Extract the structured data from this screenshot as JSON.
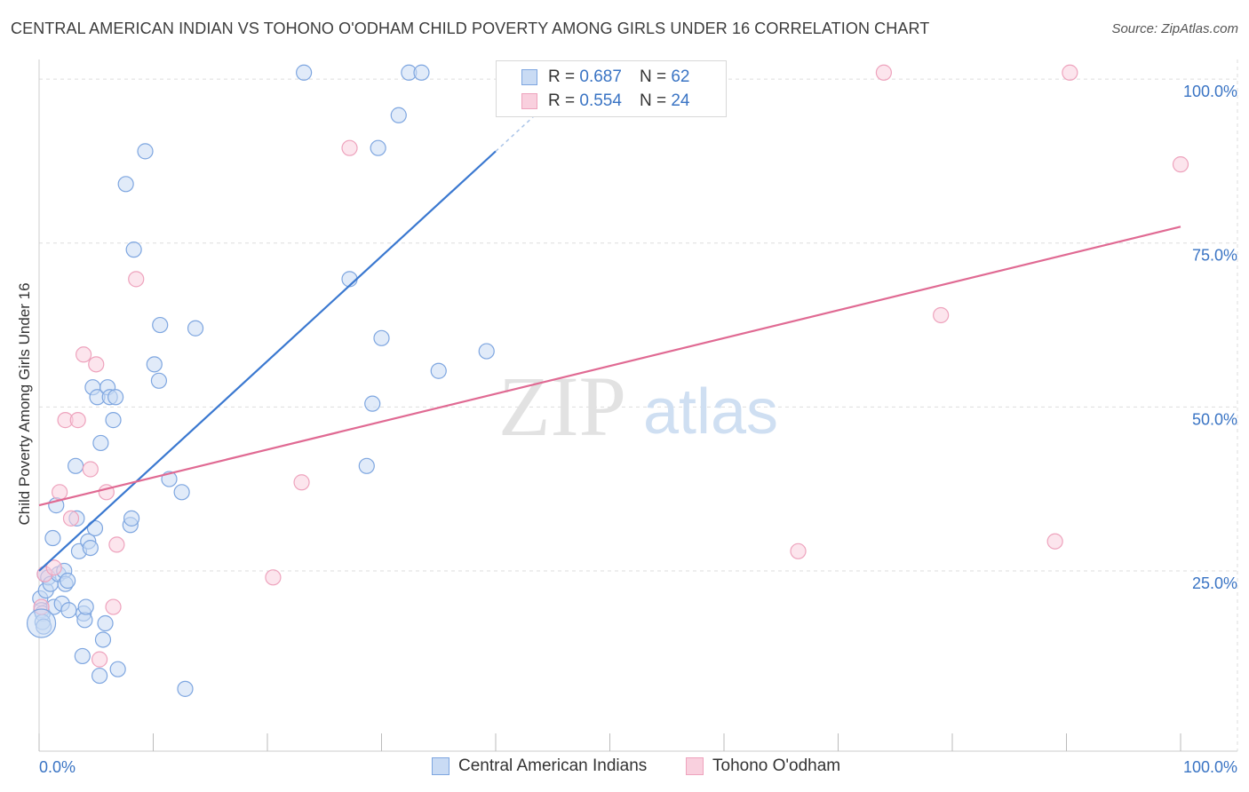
{
  "title": "CENTRAL AMERICAN INDIAN VS TOHONO O'ODHAM CHILD POVERTY AMONG GIRLS UNDER 16 CORRELATION CHART",
  "source": "Source: ZipAtlas.com",
  "watermark": {
    "zip": "ZIP",
    "atlas": "atlas"
  },
  "legend": {
    "r_label": "R =",
    "n_label": "N =",
    "rows": [
      {
        "r": "0.687",
        "n": "62"
      },
      {
        "r": "0.554",
        "n": "24"
      }
    ]
  },
  "chart_data": {
    "type": "scatter",
    "title": "CENTRAL AMERICAN INDIAN VS TOHONO O'ODHAM CHILD POVERTY AMONG GIRLS UNDER 16 CORRELATION CHART",
    "xlabel": "",
    "ylabel": "Child Poverty Among Girls Under 16",
    "xlim": [
      0,
      100
    ],
    "ylim": [
      -2.5,
      103
    ],
    "x_tick_labels": [
      {
        "value": 0,
        "label": "0.0%"
      },
      {
        "value": 100,
        "label": "100.0%"
      }
    ],
    "y_tick_labels": [
      {
        "value": 25,
        "label": "25.0%"
      },
      {
        "value": 50,
        "label": "50.0%"
      },
      {
        "value": 75,
        "label": "75.0%"
      },
      {
        "value": 100,
        "label": "100.0%"
      }
    ],
    "x_minor_ticks": [
      0,
      10,
      20,
      30,
      40,
      50,
      60,
      70,
      80,
      90,
      100
    ],
    "series": [
      {
        "name": "Central American Indians",
        "color": "#7ea6e0",
        "fill": "#c9dbf4",
        "line_color": "#3a78d0",
        "r": 0.687,
        "n": 62,
        "trend": {
          "x0": 0,
          "y0": 25,
          "x1": 40,
          "y1": 89,
          "dash_to_x": 43.5,
          "dash_to_y": 94.6
        },
        "points": [
          [
            0.1,
            20.8
          ],
          [
            0.2,
            19
          ],
          [
            0.3,
            18.5
          ],
          [
            0.3,
            17.2
          ],
          [
            0.4,
            16.5
          ],
          [
            0.5,
            24.5
          ],
          [
            0.6,
            22
          ],
          [
            0.8,
            24
          ],
          [
            1.0,
            23
          ],
          [
            1.2,
            30
          ],
          [
            1.3,
            19.5
          ],
          [
            1.5,
            35
          ],
          [
            1.7,
            24.5
          ],
          [
            2.0,
            20
          ],
          [
            2.2,
            25
          ],
          [
            2.3,
            23
          ],
          [
            2.5,
            23.5
          ],
          [
            2.6,
            19
          ],
          [
            3.2,
            41
          ],
          [
            3.3,
            33
          ],
          [
            3.5,
            28
          ],
          [
            3.8,
            12
          ],
          [
            3.9,
            18.5
          ],
          [
            4.0,
            17.5
          ],
          [
            4.1,
            19.5
          ],
          [
            4.3,
            29.5
          ],
          [
            4.5,
            28.5
          ],
          [
            4.7,
            53
          ],
          [
            4.9,
            31.5
          ],
          [
            5.1,
            51.5
          ],
          [
            5.3,
            9
          ],
          [
            5.4,
            44.5
          ],
          [
            5.6,
            14.5
          ],
          [
            5.8,
            17
          ],
          [
            6.0,
            53
          ],
          [
            6.2,
            51.5
          ],
          [
            6.5,
            48
          ],
          [
            6.7,
            51.5
          ],
          [
            6.9,
            10
          ],
          [
            7.6,
            84
          ],
          [
            8.0,
            32
          ],
          [
            8.1,
            33
          ],
          [
            8.3,
            74
          ],
          [
            9.3,
            89
          ],
          [
            10.1,
            56.5
          ],
          [
            10.5,
            54
          ],
          [
            10.6,
            62.5
          ],
          [
            11.4,
            39
          ],
          [
            12.5,
            37
          ],
          [
            12.8,
            7
          ],
          [
            13.7,
            62
          ],
          [
            23.2,
            101
          ],
          [
            27.2,
            69.5
          ],
          [
            29.2,
            50.5
          ],
          [
            28.7,
            41
          ],
          [
            29.7,
            89.5
          ],
          [
            30.0,
            60.5
          ],
          [
            31.5,
            94.5
          ],
          [
            32.4,
            101
          ],
          [
            33.5,
            101
          ],
          [
            35.0,
            55.5
          ],
          [
            39.2,
            58.5
          ]
        ]
      },
      {
        "name": "Tohono O'odham",
        "color": "#eea3bd",
        "fill": "#f9d0de",
        "line_color": "#e06a93",
        "r": 0.554,
        "n": 24,
        "trend": {
          "x0": 0,
          "y0": 35,
          "x1": 100,
          "y1": 77.5
        },
        "points": [
          [
            0.2,
            19.5
          ],
          [
            0.5,
            24.5
          ],
          [
            1.3,
            25.5
          ],
          [
            1.8,
            37
          ],
          [
            2.3,
            48
          ],
          [
            2.8,
            33
          ],
          [
            3.4,
            48
          ],
          [
            3.9,
            58
          ],
          [
            4.5,
            40.5
          ],
          [
            5.0,
            56.5
          ],
          [
            5.3,
            11.5
          ],
          [
            5.9,
            37
          ],
          [
            6.5,
            19.5
          ],
          [
            6.8,
            29
          ],
          [
            8.5,
            69.5
          ],
          [
            20.5,
            24
          ],
          [
            23.0,
            38.5
          ],
          [
            27.2,
            89.5
          ],
          [
            66.5,
            28
          ],
          [
            74.0,
            101
          ],
          [
            79.0,
            64
          ],
          [
            89.0,
            29.5
          ],
          [
            90.3,
            101
          ],
          [
            100,
            87
          ]
        ]
      }
    ]
  }
}
